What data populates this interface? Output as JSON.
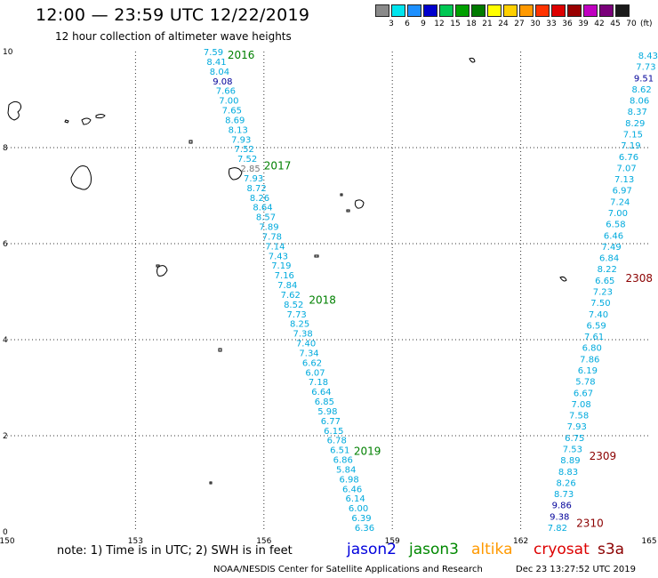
{
  "header": {
    "title": "12:00 — 23:59 UTC 12/22/2019",
    "subtitle": "12 hour collection of altimeter wave heights"
  },
  "color_scale": {
    "unit": "(ft)",
    "bins": [
      {
        "label": "3",
        "color": "#8a8a8a"
      },
      {
        "label": "6",
        "color": "#00e5ee"
      },
      {
        "label": "9",
        "color": "#1e90ff"
      },
      {
        "label": "12",
        "color": "#0000cd"
      },
      {
        "label": "15",
        "color": "#00c853"
      },
      {
        "label": "18",
        "color": "#00a000"
      },
      {
        "label": "21",
        "color": "#007a00"
      },
      {
        "label": "24",
        "color": "#ffff00"
      },
      {
        "label": "27",
        "color": "#ffd000"
      },
      {
        "label": "30",
        "color": "#ff9900"
      },
      {
        "label": "33",
        "color": "#ff3300"
      },
      {
        "label": "36",
        "color": "#dd0000"
      },
      {
        "label": "39",
        "color": "#990000"
      },
      {
        "label": "42",
        "color": "#c000c0"
      },
      {
        "label": "45",
        "color": "#7a007a"
      },
      {
        "label": "70",
        "color": "#1a1a1a"
      }
    ]
  },
  "map": {
    "x_range": [
      150,
      165
    ],
    "y_range": [
      0,
      10
    ],
    "x_ticks": [
      "150",
      "153",
      "156",
      "159",
      "162",
      "165"
    ],
    "y_ticks": [
      "0",
      "2",
      "4",
      "6",
      "8",
      "10"
    ],
    "colors": {
      "swh_text": "#00aadd",
      "swh_dark": "#000099",
      "swh_gray": "#777777",
      "pass_green": "#008000",
      "pass_red": "#8b0000"
    },
    "pass_labels": [
      {
        "text": "2016",
        "lon": 155.15,
        "lat": 9.85,
        "color": "#008000"
      },
      {
        "text": "2017",
        "lon": 156.0,
        "lat": 7.55,
        "color": "#008000"
      },
      {
        "text": "2018",
        "lon": 157.05,
        "lat": 4.75,
        "color": "#008000"
      },
      {
        "text": "2019",
        "lon": 158.1,
        "lat": 1.6,
        "color": "#008000"
      },
      {
        "text": "2308",
        "lon": 164.45,
        "lat": 5.2,
        "color": "#8b0000"
      },
      {
        "text": "2309",
        "lon": 163.6,
        "lat": 1.5,
        "color": "#8b0000"
      },
      {
        "text": "2310",
        "lon": 163.3,
        "lat": 0.1,
        "color": "#8b0000"
      }
    ],
    "track_a": [
      {
        "v": "7.59",
        "c": "#00aadd"
      },
      {
        "v": "8.41",
        "c": "#00aadd"
      },
      {
        "v": "8.04",
        "c": "#00aadd"
      },
      {
        "v": "9.08",
        "c": "#000099"
      },
      {
        "v": "7.66",
        "c": "#00aadd"
      },
      {
        "v": "7.00",
        "c": "#00aadd"
      },
      {
        "v": "7.65",
        "c": "#00aadd"
      },
      {
        "v": "8.69",
        "c": "#00aadd"
      },
      {
        "v": "8.13",
        "c": "#00aadd"
      },
      {
        "v": "7.93",
        "c": "#00aadd"
      },
      {
        "v": "7.52",
        "c": "#00aadd"
      },
      {
        "v": "7.52",
        "c": "#00aadd"
      },
      {
        "v": "2.85",
        "c": "#777777"
      },
      {
        "v": "7.93",
        "c": "#00aadd"
      },
      {
        "v": "8.72",
        "c": "#00aadd"
      },
      {
        "v": "8.26",
        "c": "#00aadd"
      },
      {
        "v": "8.64",
        "c": "#00aadd"
      },
      {
        "v": "8.57",
        "c": "#00aadd"
      },
      {
        "v": "7.89",
        "c": "#00aadd"
      },
      {
        "v": "7.78",
        "c": "#00aadd"
      },
      {
        "v": "7.14",
        "c": "#00aadd"
      },
      {
        "v": "7.43",
        "c": "#00aadd"
      },
      {
        "v": "7.19",
        "c": "#00aadd"
      },
      {
        "v": "7.16",
        "c": "#00aadd"
      },
      {
        "v": "7.84",
        "c": "#00aadd"
      },
      {
        "v": "7.62",
        "c": "#00aadd"
      },
      {
        "v": "8.52",
        "c": "#00aadd"
      },
      {
        "v": "7.73",
        "c": "#00aadd"
      },
      {
        "v": "8.25",
        "c": "#00aadd"
      },
      {
        "v": "7.38",
        "c": "#00aadd"
      },
      {
        "v": "7.40",
        "c": "#00aadd"
      },
      {
        "v": "7.34",
        "c": "#00aadd"
      },
      {
        "v": "6.62",
        "c": "#00aadd"
      },
      {
        "v": "6.07",
        "c": "#00aadd"
      },
      {
        "v": "7.18",
        "c": "#00aadd"
      },
      {
        "v": "6.64",
        "c": "#00aadd"
      },
      {
        "v": "6.85",
        "c": "#00aadd"
      },
      {
        "v": "5.98",
        "c": "#00aadd"
      },
      {
        "v": "6.77",
        "c": "#00aadd"
      },
      {
        "v": "6.15",
        "c": "#00aadd"
      },
      {
        "v": "6.78",
        "c": "#00aadd"
      },
      {
        "v": "6.51",
        "c": "#00aadd"
      },
      {
        "v": "6.86",
        "c": "#00aadd"
      },
      {
        "v": "5.84",
        "c": "#00aadd"
      },
      {
        "v": "6.98",
        "c": "#00aadd"
      },
      {
        "v": "6.46",
        "c": "#00aadd"
      },
      {
        "v": "6.14",
        "c": "#00aadd"
      },
      {
        "v": "6.00",
        "c": "#00aadd"
      },
      {
        "v": "6.39",
        "c": "#00aadd"
      },
      {
        "v": "6.36",
        "c": "#00aadd"
      }
    ],
    "track_b": [
      {
        "v": "8.43",
        "c": "#00aadd"
      },
      {
        "v": "7.73",
        "c": "#00aadd"
      },
      {
        "v": "9.51",
        "c": "#000099"
      },
      {
        "v": "8.62",
        "c": "#00aadd"
      },
      {
        "v": "8.06",
        "c": "#00aadd"
      },
      {
        "v": "8.37",
        "c": "#00aadd"
      },
      {
        "v": "8.29",
        "c": "#00aadd"
      },
      {
        "v": "7.15",
        "c": "#00aadd"
      },
      {
        "v": "7.19",
        "c": "#00aadd"
      },
      {
        "v": "6.76",
        "c": "#00aadd"
      },
      {
        "v": "7.07",
        "c": "#00aadd"
      },
      {
        "v": "7.13",
        "c": "#00aadd"
      },
      {
        "v": "6.97",
        "c": "#00aadd"
      },
      {
        "v": "7.24",
        "c": "#00aadd"
      },
      {
        "v": "7.00",
        "c": "#00aadd"
      },
      {
        "v": "6.58",
        "c": "#00aadd"
      },
      {
        "v": "6.46",
        "c": "#00aadd"
      },
      {
        "v": "7.49",
        "c": "#00aadd"
      },
      {
        "v": "6.84",
        "c": "#00aadd"
      },
      {
        "v": "8.22",
        "c": "#00aadd"
      },
      {
        "v": "6.65",
        "c": "#00aadd"
      },
      {
        "v": "7.23",
        "c": "#00aadd"
      },
      {
        "v": "7.50",
        "c": "#00aadd"
      },
      {
        "v": "7.40",
        "c": "#00aadd"
      },
      {
        "v": "6.59",
        "c": "#00aadd"
      },
      {
        "v": "7.61",
        "c": "#00aadd"
      },
      {
        "v": "6.80",
        "c": "#00aadd"
      },
      {
        "v": "7.86",
        "c": "#00aadd"
      },
      {
        "v": "6.19",
        "c": "#00aadd"
      },
      {
        "v": "5.78",
        "c": "#00aadd"
      },
      {
        "v": "6.67",
        "c": "#00aadd"
      },
      {
        "v": "7.08",
        "c": "#00aadd"
      },
      {
        "v": "7.58",
        "c": "#00aadd"
      },
      {
        "v": "7.93",
        "c": "#00aadd"
      },
      {
        "v": "6.75",
        "c": "#00aadd"
      },
      {
        "v": "7.53",
        "c": "#00aadd"
      },
      {
        "v": "8.89",
        "c": "#00aadd"
      },
      {
        "v": "8.83",
        "c": "#00aadd"
      },
      {
        "v": "8.26",
        "c": "#00aadd"
      },
      {
        "v": "8.73",
        "c": "#00aadd"
      },
      {
        "v": "9.86",
        "c": "#000099"
      },
      {
        "v": "9.38",
        "c": "#000099"
      },
      {
        "v": "7.82",
        "c": "#00aadd"
      }
    ]
  },
  "footer": {
    "note": "note: 1) Time is in UTC; 2) SWH is in feet",
    "missions": [
      {
        "name": "jason2",
        "color": "#0000dd"
      },
      {
        "name": "jason3",
        "color": "#008800"
      },
      {
        "name": "altika",
        "color": "#ff9900"
      },
      {
        "name": "cryosat",
        "color": "#dd0000"
      },
      {
        "name": "s3a",
        "color": "#8b0000"
      }
    ],
    "credit": "NOAA/NESDIS Center for Satellite Applications and Research",
    "timestamp": "Dec 23 13:27:52 UTC 2019"
  }
}
